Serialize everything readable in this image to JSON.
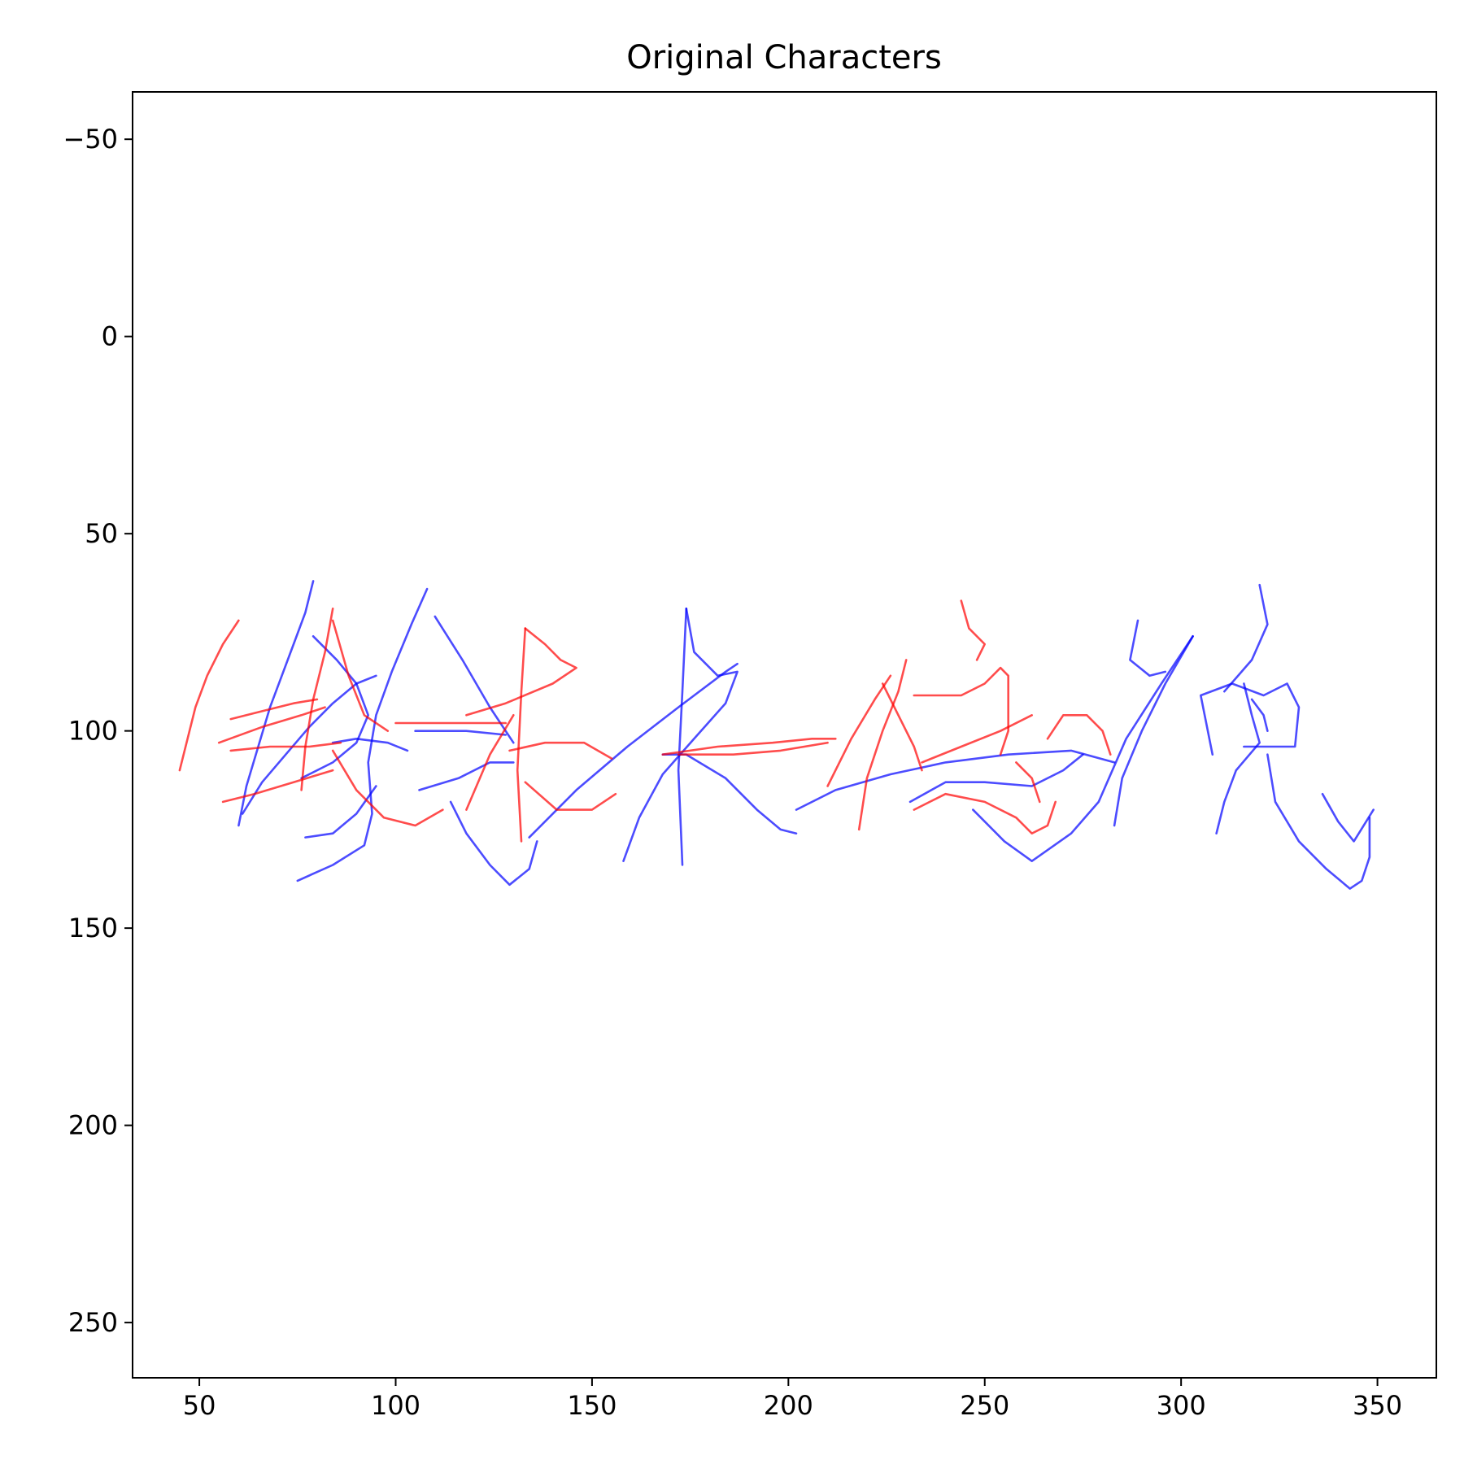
{
  "chart_data": {
    "type": "line",
    "title": "Original Characters",
    "xlabel": "",
    "ylabel": "",
    "xlim": [
      33,
      365
    ],
    "ylim": [
      264,
      -62
    ],
    "y_inverted": true,
    "grid": false,
    "legend": "none",
    "xticks": [
      50,
      100,
      150,
      200,
      250,
      300,
      350
    ],
    "yticks": [
      -50,
      0,
      50,
      100,
      150,
      200,
      250
    ],
    "xtick_labels": [
      "50",
      "100",
      "150",
      "200",
      "250",
      "300",
      "350"
    ],
    "ytick_labels": [
      "−50",
      "0",
      "50",
      "100",
      "150",
      "200",
      "250"
    ],
    "series": [
      {
        "color": "#0000ff",
        "strokes": [
          [
            [
              79,
              62
            ],
            [
              77,
              70
            ],
            [
              74,
              78
            ],
            [
              71,
              86
            ],
            [
              68,
              94
            ],
            [
              65,
              104
            ],
            [
              62,
              114
            ],
            [
              60,
              124
            ]
          ],
          [
            [
              61,
              121
            ],
            [
              66,
              113
            ],
            [
              72,
              106
            ],
            [
              78,
              99
            ],
            [
              84,
              93
            ],
            [
              90,
              88
            ],
            [
              95,
              86
            ]
          ],
          [
            [
              79,
              76
            ],
            [
              85,
              82
            ],
            [
              90,
              88
            ],
            [
              93,
              96
            ],
            [
              90,
              103
            ],
            [
              84,
              108
            ],
            [
              76,
              112
            ]
          ],
          [
            [
              108,
              64
            ],
            [
              104,
              73
            ],
            [
              99,
              85
            ],
            [
              95,
              96
            ],
            [
              93,
              108
            ],
            [
              94,
              121
            ],
            [
              92,
              129
            ],
            [
              84,
              134
            ],
            [
              75,
              138
            ]
          ],
          [
            [
              95,
              114
            ],
            [
              90,
              121
            ],
            [
              84,
              126
            ],
            [
              77,
              127
            ]
          ],
          [
            [
              84,
              103
            ],
            [
              90,
              102
            ],
            [
              98,
              103
            ],
            [
              103,
              105
            ]
          ],
          [
            [
              105,
              100
            ],
            [
              118,
              100
            ],
            [
              128,
              101
            ]
          ],
          [
            [
              110,
              71
            ],
            [
              117,
              82
            ],
            [
              124,
              94
            ],
            [
              130,
              103
            ]
          ],
          [
            [
              106,
              115
            ],
            [
              116,
              112
            ],
            [
              124,
              108
            ],
            [
              130,
              108
            ]
          ],
          [
            [
              114,
              118
            ],
            [
              118,
              126
            ],
            [
              124,
              134
            ],
            [
              129,
              139
            ],
            [
              134,
              135
            ],
            [
              136,
              128
            ]
          ],
          [
            [
              134,
              127
            ],
            [
              146,
              115
            ],
            [
              159,
              104
            ],
            [
              172,
              94
            ],
            [
              184,
              85
            ],
            [
              187,
              83
            ]
          ],
          [
            [
              174,
              69
            ],
            [
              176,
              80
            ],
            [
              182,
              86
            ],
            [
              187,
              85
            ],
            [
              184,
              93
            ],
            [
              176,
              102
            ],
            [
              168,
              111
            ],
            [
              162,
              122
            ],
            [
              158,
              133
            ]
          ],
          [
            [
              174,
              69
            ],
            [
              173,
              90
            ],
            [
              172,
              110
            ],
            [
              173,
              134
            ]
          ],
          [
            [
              168,
              106
            ],
            [
              174,
              106
            ],
            [
              184,
              112
            ],
            [
              192,
              120
            ],
            [
              198,
              125
            ],
            [
              202,
              126
            ]
          ],
          [
            [
              202,
              120
            ],
            [
              212,
              115
            ],
            [
              226,
              111
            ],
            [
              240,
              108
            ],
            [
              256,
              106
            ],
            [
              272,
              105
            ],
            [
              283,
              108
            ]
          ],
          [
            [
              231,
              118
            ],
            [
              240,
              113
            ],
            [
              250,
              113
            ],
            [
              262,
              114
            ],
            [
              270,
              110
            ],
            [
              275,
              106
            ]
          ],
          [
            [
              289,
              72
            ],
            [
              287,
              82
            ],
            [
              292,
              86
            ],
            [
              296,
              85
            ]
          ],
          [
            [
              303,
              76
            ],
            [
              296,
              88
            ],
            [
              290,
              100
            ],
            [
              285,
              112
            ],
            [
              283,
              124
            ]
          ],
          [
            [
              303,
              76
            ],
            [
              295,
              88
            ],
            [
              286,
              102
            ],
            [
              279,
              118
            ],
            [
              272,
              126
            ],
            [
              262,
              133
            ],
            [
              255,
              128
            ],
            [
              247,
              120
            ]
          ],
          [
            [
              308,
              106
            ],
            [
              305,
              91
            ],
            [
              313,
              88
            ],
            [
              321,
              91
            ],
            [
              327,
              88
            ],
            [
              330,
              94
            ],
            [
              329,
              104
            ],
            [
              322,
              104
            ],
            [
              316,
              104
            ]
          ],
          [
            [
              320,
              63
            ],
            [
              322,
              73
            ],
            [
              318,
              82
            ],
            [
              311,
              90
            ]
          ],
          [
            [
              316,
              88
            ],
            [
              318,
              96
            ],
            [
              320,
              103
            ],
            [
              314,
              110
            ],
            [
              311,
              118
            ],
            [
              309,
              126
            ]
          ],
          [
            [
              318,
              92
            ],
            [
              321,
              96
            ],
            [
              322,
              100
            ]
          ],
          [
            [
              322,
              106
            ],
            [
              324,
              118
            ],
            [
              330,
              128
            ],
            [
              337,
              135
            ],
            [
              343,
              140
            ],
            [
              346,
              138
            ],
            [
              348,
              132
            ],
            [
              348,
              122
            ]
          ],
          [
            [
              336,
              116
            ],
            [
              340,
              123
            ],
            [
              344,
              128
            ],
            [
              349,
              120
            ]
          ]
        ]
      },
      {
        "color": "#ff0000",
        "strokes": [
          [
            [
              60,
              72
            ],
            [
              56,
              78
            ],
            [
              52,
              86
            ],
            [
              49,
              94
            ],
            [
              47,
              102
            ],
            [
              45,
              110
            ]
          ],
          [
            [
              58,
              97
            ],
            [
              66,
              95
            ],
            [
              74,
              93
            ],
            [
              80,
              92
            ]
          ],
          [
            [
              55,
              103
            ],
            [
              66,
              99
            ],
            [
              76,
              96
            ],
            [
              82,
              94
            ]
          ],
          [
            [
              58,
              105
            ],
            [
              68,
              104
            ],
            [
              78,
              104
            ],
            [
              86,
              103
            ]
          ],
          [
            [
              56,
              118
            ],
            [
              64,
              116
            ],
            [
              74,
              113
            ],
            [
              84,
              110
            ]
          ],
          [
            [
              84,
              69
            ],
            [
              82,
              80
            ],
            [
              79,
              92
            ],
            [
              77,
              104
            ],
            [
              76,
              115
            ]
          ],
          [
            [
              84,
              72
            ],
            [
              88,
              86
            ],
            [
              92,
              96
            ],
            [
              98,
              100
            ]
          ],
          [
            [
              84,
              105
            ],
            [
              90,
              115
            ],
            [
              97,
              122
            ],
            [
              105,
              124
            ],
            [
              112,
              120
            ]
          ],
          [
            [
              100,
              98
            ],
            [
              112,
              98
            ],
            [
              124,
              98
            ],
            [
              128,
              98
            ]
          ],
          [
            [
              133,
              74
            ],
            [
              132,
              90
            ],
            [
              131,
              110
            ],
            [
              132,
              128
            ]
          ],
          [
            [
              133,
              74
            ],
            [
              138,
              78
            ],
            [
              142,
              82
            ],
            [
              146,
              84
            ],
            [
              140,
              88
            ],
            [
              128,
              93
            ],
            [
              118,
              96
            ]
          ],
          [
            [
              118,
              120
            ],
            [
              124,
              106
            ],
            [
              130,
              96
            ]
          ],
          [
            [
              129,
              105
            ],
            [
              138,
              103
            ],
            [
              148,
              103
            ],
            [
              155,
              107
            ]
          ],
          [
            [
              133,
              113
            ],
            [
              141,
              120
            ],
            [
              150,
              120
            ],
            [
              156,
              116
            ]
          ],
          [
            [
              168,
              106
            ],
            [
              182,
              104
            ],
            [
              196,
              103
            ],
            [
              206,
              102
            ],
            [
              212,
              102
            ]
          ],
          [
            [
              172,
              106
            ],
            [
              186,
              106
            ],
            [
              198,
              105
            ],
            [
              210,
              103
            ]
          ],
          [
            [
              210,
              114
            ],
            [
              216,
              102
            ],
            [
              222,
              92
            ],
            [
              226,
              86
            ]
          ],
          [
            [
              224,
              88
            ],
            [
              228,
              96
            ],
            [
              232,
              104
            ],
            [
              234,
              110
            ]
          ],
          [
            [
              218,
              125
            ],
            [
              220,
              112
            ],
            [
              224,
              100
            ],
            [
              228,
              90
            ],
            [
              230,
              82
            ]
          ],
          [
            [
              232,
              91
            ],
            [
              244,
              91
            ],
            [
              250,
              88
            ],
            [
              254,
              84
            ],
            [
              256,
              86
            ],
            [
              256,
              100
            ],
            [
              254,
              106
            ]
          ],
          [
            [
              244,
              67
            ],
            [
              246,
              74
            ],
            [
              250,
              78
            ],
            [
              248,
              82
            ]
          ],
          [
            [
              234,
              108
            ],
            [
              244,
              104
            ],
            [
              254,
              100
            ],
            [
              262,
              96
            ]
          ],
          [
            [
              232,
              120
            ],
            [
              240,
              116
            ],
            [
              250,
              118
            ],
            [
              258,
              122
            ],
            [
              262,
              126
            ],
            [
              266,
              124
            ],
            [
              268,
              118
            ]
          ],
          [
            [
              266,
              102
            ],
            [
              270,
              96
            ],
            [
              276,
              96
            ],
            [
              280,
              100
            ],
            [
              282,
              106
            ]
          ],
          [
            [
              258,
              108
            ],
            [
              262,
              112
            ],
            [
              264,
              118
            ]
          ]
        ]
      }
    ]
  }
}
